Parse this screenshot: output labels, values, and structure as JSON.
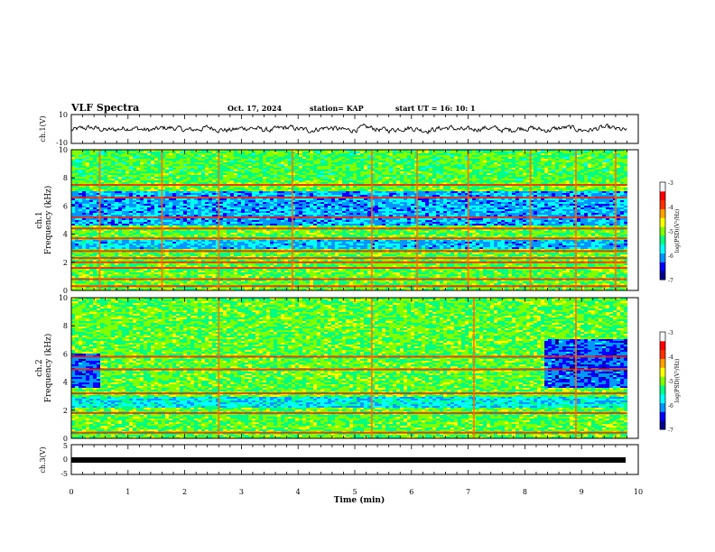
{
  "header": {
    "title": "VLF Spectra",
    "date": "Oct. 17, 2024",
    "station": "station= KAP",
    "start": "start  UT  =   16: 10: 1"
  },
  "colormap": [
    "#00008b",
    "#0000ff",
    "#0096ff",
    "#00ffff",
    "#00ff80",
    "#80ff00",
    "#ffff00",
    "#ffa000",
    "#ff3000",
    "#ff0000",
    "#ffffff"
  ],
  "chart_data": [
    {
      "type": "line",
      "panel": "ch1-waveform",
      "ylabel": "ch.1(V)",
      "ylim": [
        -10,
        10
      ],
      "yticks": [
        "10",
        "-10"
      ],
      "x_range": [
        0,
        9.8
      ],
      "mean_value": 0,
      "approx_amplitude": 3,
      "series_desc": "continuous black waveform centered near 0 V"
    },
    {
      "type": "heatmap",
      "panel": "ch1-spectrogram",
      "ylabel": "ch.1\nFrequency (kHz)",
      "ylim": [
        0,
        10
      ],
      "yticks": [
        "0",
        "2",
        "4",
        "6",
        "8",
        "10"
      ],
      "x_range": [
        0,
        9.8
      ],
      "colorbar": {
        "label": "log(PSD)(V²/Hz)",
        "range": [
          -7,
          -3
        ],
        "ticks": [
          "-3",
          "-4",
          "-5",
          "-6",
          "-7"
        ]
      },
      "strong_lines_khz": [
        0.3,
        0.8,
        1.6,
        2.0,
        2.3,
        2.8,
        3.7,
        4.4,
        5.2,
        6.6,
        7.5
      ],
      "weak_band_khz": [
        4.6,
        7.0
      ],
      "bright_vertical_spikes_min": [
        0.5,
        1.6,
        2.6,
        3.9,
        5.3,
        6.1,
        7.0,
        8.1,
        8.9,
        9.6
      ]
    },
    {
      "type": "heatmap",
      "panel": "ch2-spectrogram",
      "ylabel": "ch.2\nFrequency (kHz)",
      "ylim": [
        0,
        10
      ],
      "yticks": [
        "0",
        "2",
        "4",
        "6",
        "8",
        "10"
      ],
      "x_range": [
        0,
        9.8
      ],
      "colorbar": {
        "label": "log(PSD)(V²/Hz)",
        "range": [
          -7,
          -3
        ],
        "ticks": [
          "-3",
          "-4",
          "-5",
          "-6",
          "-7"
        ]
      },
      "strong_lines_khz": [
        0.4,
        1.8,
        3.2,
        4.9,
        5.8
      ],
      "low_power_blocks": [
        {
          "x": [
            0,
            0.45
          ],
          "f": [
            3.6,
            6.0
          ]
        },
        {
          "x": [
            8.3,
            9.8
          ],
          "f": [
            3.6,
            7.0
          ]
        }
      ],
      "bright_vertical_spikes_min": [
        2.6,
        5.3,
        7.1,
        8.9
      ]
    },
    {
      "type": "line",
      "panel": "ch3-waveform",
      "ylabel": "ch.3(V)",
      "ylim": [
        -5,
        5
      ],
      "yticks": [
        "5",
        "0",
        "-5"
      ],
      "x_range": [
        0,
        9.8
      ],
      "mean_value": 0,
      "series_desc": "flat thick black trace near 0 V"
    }
  ],
  "xaxis": {
    "label": "Time (min)",
    "range": [
      0,
      10
    ],
    "ticks": [
      "0",
      "1",
      "2",
      "3",
      "4",
      "5",
      "6",
      "7",
      "8",
      "9",
      "10"
    ]
  }
}
